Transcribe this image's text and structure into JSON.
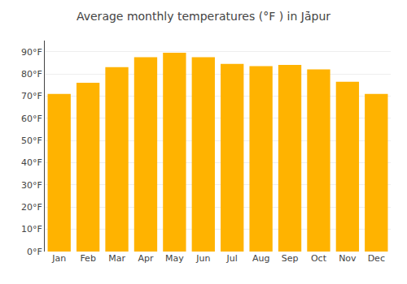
{
  "chart_data": {
    "type": "bar",
    "title": "Average monthly temperatures (°F ) in Jā̇pur",
    "categories": [
      "Jan",
      "Feb",
      "Mar",
      "Apr",
      "May",
      "Jun",
      "Jul",
      "Aug",
      "Sep",
      "Oct",
      "Nov",
      "Dec"
    ],
    "values": [
      71.0,
      76.0,
      83.0,
      87.5,
      89.5,
      87.5,
      84.5,
      83.5,
      84.0,
      82.0,
      76.5,
      71.0
    ],
    "color": "#FFB300",
    "ylim": [
      0,
      95
    ],
    "yticks": [
      {
        "value": 0,
        "label": "0°F"
      },
      {
        "value": 10,
        "label": "10°F"
      },
      {
        "value": 20,
        "label": "20°F"
      },
      {
        "value": 30,
        "label": "30°F"
      },
      {
        "value": 40,
        "label": "40°F"
      },
      {
        "value": 50,
        "label": "50°F"
      },
      {
        "value": 60,
        "label": "60°F"
      },
      {
        "value": 70,
        "label": "70°F"
      },
      {
        "value": 80,
        "label": "80°F"
      },
      {
        "value": 90,
        "label": "90°F"
      }
    ],
    "grid": true
  }
}
